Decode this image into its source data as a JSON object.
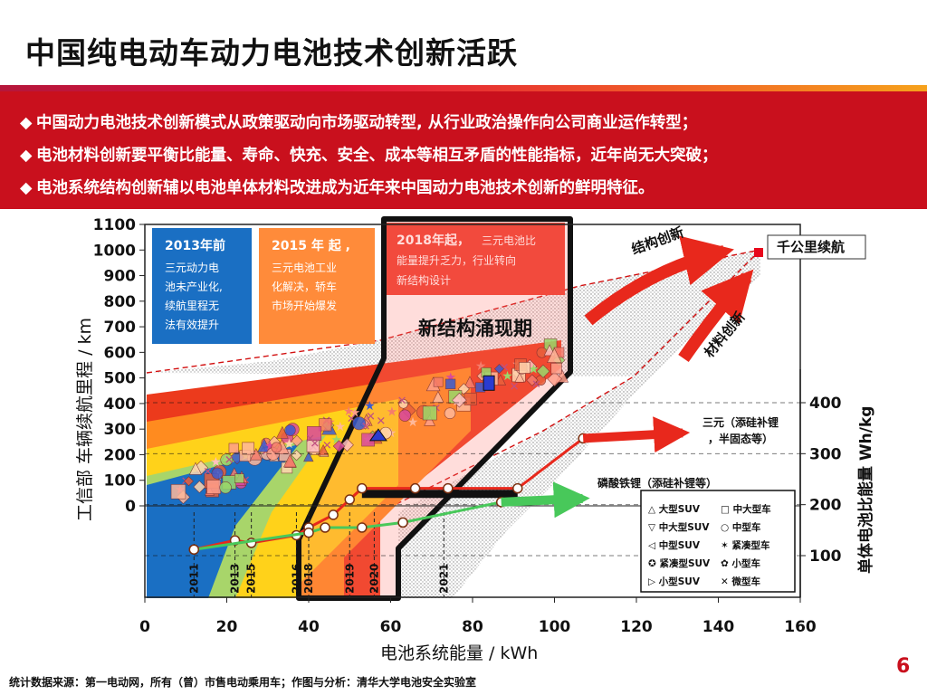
{
  "title": "中国纯电动车动力电池技术创新活跃",
  "bullets": [
    "中国动力电池技术创新模式从政策驱动向市场驱动转型, 从行业政治操作向公司商业运作转型；",
    "电池材料创新要平衡比能量、寿命、快充、安全、成本等相互矛盾的性能指标，近年尚无大突破；",
    "电池系统结构创新辅以电池单体材料改进成为近年来中国动力电池技术创新的鲜明特征。"
  ],
  "bullet_marker": "◆",
  "source": "统计数据来源：第一电动网，所有（曾）市售电动乘用车；作图与分析：清华大学电池安全实验室",
  "page_number": "6",
  "colors": {
    "accent": "#c9101d",
    "blue": "#1a6fc3",
    "yellow": "#ffd21a",
    "orange": "#ff8a1f",
    "red": "#e8321c",
    "green": "#48c85a",
    "band_red": "#e8281c"
  },
  "chart_data": {
    "type": "scatter",
    "xlabel": "电池系统能量 / kWh",
    "ylabel": "工信部 车辆续航里程 / km",
    "y2label": "单体电池比能量 Wh/kg",
    "xlim": [
      0,
      160
    ],
    "ylim": [
      0,
      1100
    ],
    "xticks": [
      0,
      20,
      40,
      60,
      80,
      100,
      120,
      140,
      160
    ],
    "yticks": [
      0,
      100,
      200,
      300,
      400,
      500,
      600,
      700,
      800,
      900,
      1000,
      1100
    ],
    "y2ticks": [
      100,
      200,
      300,
      400
    ],
    "eras": [
      {
        "label": "2013年前",
        "text": [
          "三元动力电",
          "池未产业化,",
          "续航里程无",
          "法有效提升"
        ]
      },
      {
        "label": "2015 年 起 ,",
        "text": [
          "三元电池工业",
          "化解决，轿车",
          "市场开始爆发"
        ]
      },
      {
        "label": "2018年起，",
        "text": [
          "三元电池比",
          "能量提升乏力，行业转向",
          "新结构设计"
        ]
      }
    ],
    "new_structure_label": "新结构涌现期",
    "structure_innovation": "结构创新",
    "material_innovation": "材料创新",
    "target_label": "千公里续航",
    "target_point": {
      "x": 150,
      "y": 1000
    },
    "years": [
      "2011",
      "2013",
      "2015",
      "2016",
      "2018",
      "2019",
      "2020",
      "2021"
    ],
    "year_x": [
      12,
      22,
      26,
      37,
      40,
      50,
      56,
      73
    ],
    "series": [
      {
        "name": "三元（添硅补锂，半固态等）",
        "x": [
          12,
          22,
          26,
          37,
          40,
          46,
          50,
          53,
          66,
          74,
          91,
          107
        ],
        "y2": [
          112,
          130,
          125,
          140,
          155,
          180,
          210,
          232,
          232,
          232,
          232,
          330
        ]
      },
      {
        "name": "磷酸铁锂（添硅补锂等）",
        "x": [
          12,
          40,
          44,
          53,
          63,
          87
        ],
        "y2": [
          112,
          145,
          155,
          155,
          165,
          205
        ]
      }
    ],
    "legend_title_left": [
      "大型SUV",
      "中大型SUV",
      "中型SUV",
      "紧凑型SUV",
      "小型SUV"
    ],
    "legend_title_right": [
      "中大型车",
      "中型车",
      "紧凑型车",
      "小型车",
      "微型车"
    ],
    "legend_symbols_left": [
      "△",
      "▽",
      "◁",
      "✪",
      "▷"
    ],
    "legend_symbols_right": [
      "□",
      "○",
      "✶",
      "✿",
      "✕"
    ]
  }
}
